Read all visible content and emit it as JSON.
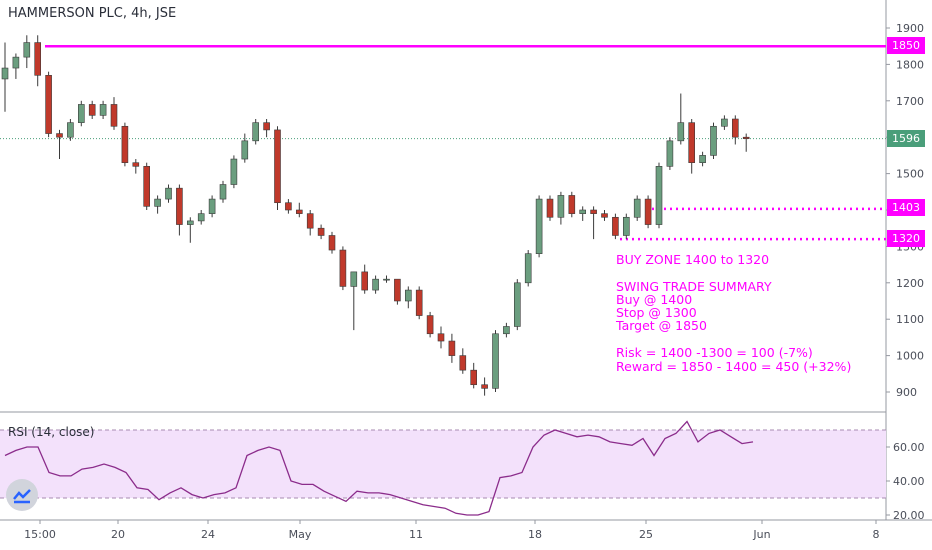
{
  "header": {
    "title": "HAMMERSON PLC, 4h, JSE"
  },
  "rsi": {
    "title": "RSI (14, close)",
    "upper": 70,
    "lower": 30,
    "ticks": [
      "60.00",
      "40.00",
      "20.00"
    ]
  },
  "price_axis": {
    "ticks": [
      "1900",
      "1800",
      "1700",
      "1600",
      "1500",
      "1400",
      "1300",
      "1200",
      "1100",
      "1000",
      "900"
    ]
  },
  "time_axis": {
    "labels": [
      "15:00",
      "20",
      "24",
      "May",
      "11",
      "18",
      "25",
      "Jun",
      "8"
    ]
  },
  "price_tags": [
    {
      "value": "1850",
      "color": "#ff00ff"
    },
    {
      "value": "1596",
      "color": "#4a9e7a"
    },
    {
      "value": "1403",
      "color": "#ff00ff"
    },
    {
      "value": "1320",
      "color": "#ff00ff"
    }
  ],
  "annotations": {
    "buy_zone": "BUY ZONE 1400 to 1320",
    "summary_lines": [
      "SWING TRADE SUMMARY",
      "Buy @ 1400",
      "Stop @ 1300",
      "Target @ 1850",
      "",
      "Risk = 1400 -1300 = 100 (-7%)",
      "Reward = 1850 - 1400 = 450 (+32%)"
    ]
  },
  "colors": {
    "up": "#6b9e7f",
    "down": "#c0392b",
    "accent": "#ff00ff",
    "rsi_line": "#8b2c8b",
    "rsi_band": "#f3e1fb"
  },
  "chart_data": {
    "type": "candlestick",
    "title": "HAMMERSON PLC, 4h, JSE",
    "ylim": [
      830,
      1950
    ],
    "hlines": [
      1850,
      1403,
      1320
    ],
    "last_price": 1596,
    "candles": [
      {
        "o": 1760,
        "h": 1860,
        "l": 1670,
        "c": 1790
      },
      {
        "o": 1790,
        "h": 1830,
        "l": 1760,
        "c": 1820
      },
      {
        "o": 1820,
        "h": 1880,
        "l": 1790,
        "c": 1860
      },
      {
        "o": 1860,
        "h": 1880,
        "l": 1740,
        "c": 1770
      },
      {
        "o": 1770,
        "h": 1780,
        "l": 1600,
        "c": 1610
      },
      {
        "o": 1610,
        "h": 1620,
        "l": 1540,
        "c": 1600
      },
      {
        "o": 1600,
        "h": 1650,
        "l": 1590,
        "c": 1640
      },
      {
        "o": 1640,
        "h": 1700,
        "l": 1630,
        "c": 1690
      },
      {
        "o": 1690,
        "h": 1700,
        "l": 1650,
        "c": 1660
      },
      {
        "o": 1660,
        "h": 1700,
        "l": 1650,
        "c": 1690
      },
      {
        "o": 1690,
        "h": 1710,
        "l": 1620,
        "c": 1630
      },
      {
        "o": 1630,
        "h": 1640,
        "l": 1520,
        "c": 1530
      },
      {
        "o": 1530,
        "h": 1540,
        "l": 1500,
        "c": 1520
      },
      {
        "o": 1520,
        "h": 1530,
        "l": 1400,
        "c": 1410
      },
      {
        "o": 1410,
        "h": 1440,
        "l": 1390,
        "c": 1430
      },
      {
        "o": 1430,
        "h": 1470,
        "l": 1420,
        "c": 1460
      },
      {
        "o": 1460,
        "h": 1470,
        "l": 1330,
        "c": 1360
      },
      {
        "o": 1360,
        "h": 1380,
        "l": 1310,
        "c": 1370
      },
      {
        "o": 1370,
        "h": 1400,
        "l": 1360,
        "c": 1390
      },
      {
        "o": 1390,
        "h": 1440,
        "l": 1380,
        "c": 1430
      },
      {
        "o": 1430,
        "h": 1480,
        "l": 1420,
        "c": 1470
      },
      {
        "o": 1470,
        "h": 1550,
        "l": 1460,
        "c": 1540
      },
      {
        "o": 1540,
        "h": 1610,
        "l": 1530,
        "c": 1590
      },
      {
        "o": 1590,
        "h": 1650,
        "l": 1580,
        "c": 1640
      },
      {
        "o": 1640,
        "h": 1650,
        "l": 1600,
        "c": 1620
      },
      {
        "o": 1620,
        "h": 1630,
        "l": 1400,
        "c": 1420
      },
      {
        "o": 1420,
        "h": 1430,
        "l": 1390,
        "c": 1400
      },
      {
        "o": 1400,
        "h": 1420,
        "l": 1380,
        "c": 1390
      },
      {
        "o": 1390,
        "h": 1400,
        "l": 1330,
        "c": 1350
      },
      {
        "o": 1350,
        "h": 1360,
        "l": 1320,
        "c": 1330
      },
      {
        "o": 1330,
        "h": 1340,
        "l": 1280,
        "c": 1290
      },
      {
        "o": 1290,
        "h": 1300,
        "l": 1180,
        "c": 1190
      },
      {
        "o": 1190,
        "h": 1230,
        "l": 1070,
        "c": 1230
      },
      {
        "o": 1230,
        "h": 1250,
        "l": 1170,
        "c": 1180
      },
      {
        "o": 1180,
        "h": 1220,
        "l": 1170,
        "c": 1210
      },
      {
        "o": 1210,
        "h": 1220,
        "l": 1200,
        "c": 1210
      },
      {
        "o": 1210,
        "h": 1210,
        "l": 1140,
        "c": 1150
      },
      {
        "o": 1150,
        "h": 1190,
        "l": 1130,
        "c": 1180
      },
      {
        "o": 1180,
        "h": 1190,
        "l": 1100,
        "c": 1110
      },
      {
        "o": 1110,
        "h": 1120,
        "l": 1050,
        "c": 1060
      },
      {
        "o": 1060,
        "h": 1080,
        "l": 1020,
        "c": 1040
      },
      {
        "o": 1040,
        "h": 1060,
        "l": 980,
        "c": 1000
      },
      {
        "o": 1000,
        "h": 1020,
        "l": 950,
        "c": 960
      },
      {
        "o": 960,
        "h": 980,
        "l": 910,
        "c": 920
      },
      {
        "o": 920,
        "h": 940,
        "l": 890,
        "c": 910
      },
      {
        "o": 910,
        "h": 1070,
        "l": 900,
        "c": 1060
      },
      {
        "o": 1060,
        "h": 1090,
        "l": 1050,
        "c": 1080
      },
      {
        "o": 1080,
        "h": 1210,
        "l": 1070,
        "c": 1200
      },
      {
        "o": 1200,
        "h": 1290,
        "l": 1190,
        "c": 1280
      },
      {
        "o": 1280,
        "h": 1440,
        "l": 1270,
        "c": 1430
      },
      {
        "o": 1430,
        "h": 1440,
        "l": 1370,
        "c": 1380
      },
      {
        "o": 1380,
        "h": 1450,
        "l": 1360,
        "c": 1440
      },
      {
        "o": 1440,
        "h": 1450,
        "l": 1380,
        "c": 1390
      },
      {
        "o": 1390,
        "h": 1410,
        "l": 1370,
        "c": 1400
      },
      {
        "o": 1400,
        "h": 1410,
        "l": 1320,
        "c": 1390
      },
      {
        "o": 1390,
        "h": 1400,
        "l": 1370,
        "c": 1380
      },
      {
        "o": 1380,
        "h": 1390,
        "l": 1320,
        "c": 1330
      },
      {
        "o": 1330,
        "h": 1390,
        "l": 1320,
        "c": 1380
      },
      {
        "o": 1380,
        "h": 1440,
        "l": 1370,
        "c": 1430
      },
      {
        "o": 1430,
        "h": 1440,
        "l": 1350,
        "c": 1360
      },
      {
        "o": 1360,
        "h": 1530,
        "l": 1350,
        "c": 1520
      },
      {
        "o": 1520,
        "h": 1600,
        "l": 1510,
        "c": 1590
      },
      {
        "o": 1590,
        "h": 1720,
        "l": 1580,
        "c": 1640
      },
      {
        "o": 1640,
        "h": 1650,
        "l": 1500,
        "c": 1530
      },
      {
        "o": 1530,
        "h": 1560,
        "l": 1520,
        "c": 1550
      },
      {
        "o": 1550,
        "h": 1640,
        "l": 1540,
        "c": 1630
      },
      {
        "o": 1630,
        "h": 1660,
        "l": 1620,
        "c": 1650
      },
      {
        "o": 1650,
        "h": 1660,
        "l": 1580,
        "c": 1600
      },
      {
        "o": 1600,
        "h": 1610,
        "l": 1560,
        "c": 1596
      }
    ],
    "rsi_values": [
      55,
      58,
      60,
      60,
      45,
      43,
      43,
      47,
      48,
      50,
      48,
      45,
      36,
      35,
      29,
      33,
      36,
      32,
      30,
      32,
      33,
      36,
      55,
      58,
      60,
      58,
      40,
      38,
      38,
      34,
      31,
      28,
      34,
      33,
      33,
      32,
      30,
      28,
      26,
      25,
      24,
      21,
      20,
      20,
      22,
      42,
      43,
      45,
      60,
      67,
      70,
      68,
      66,
      67,
      66,
      63,
      62,
      61,
      65,
      55,
      65,
      68,
      75,
      63,
      68,
      70,
      66,
      62,
      63
    ]
  }
}
